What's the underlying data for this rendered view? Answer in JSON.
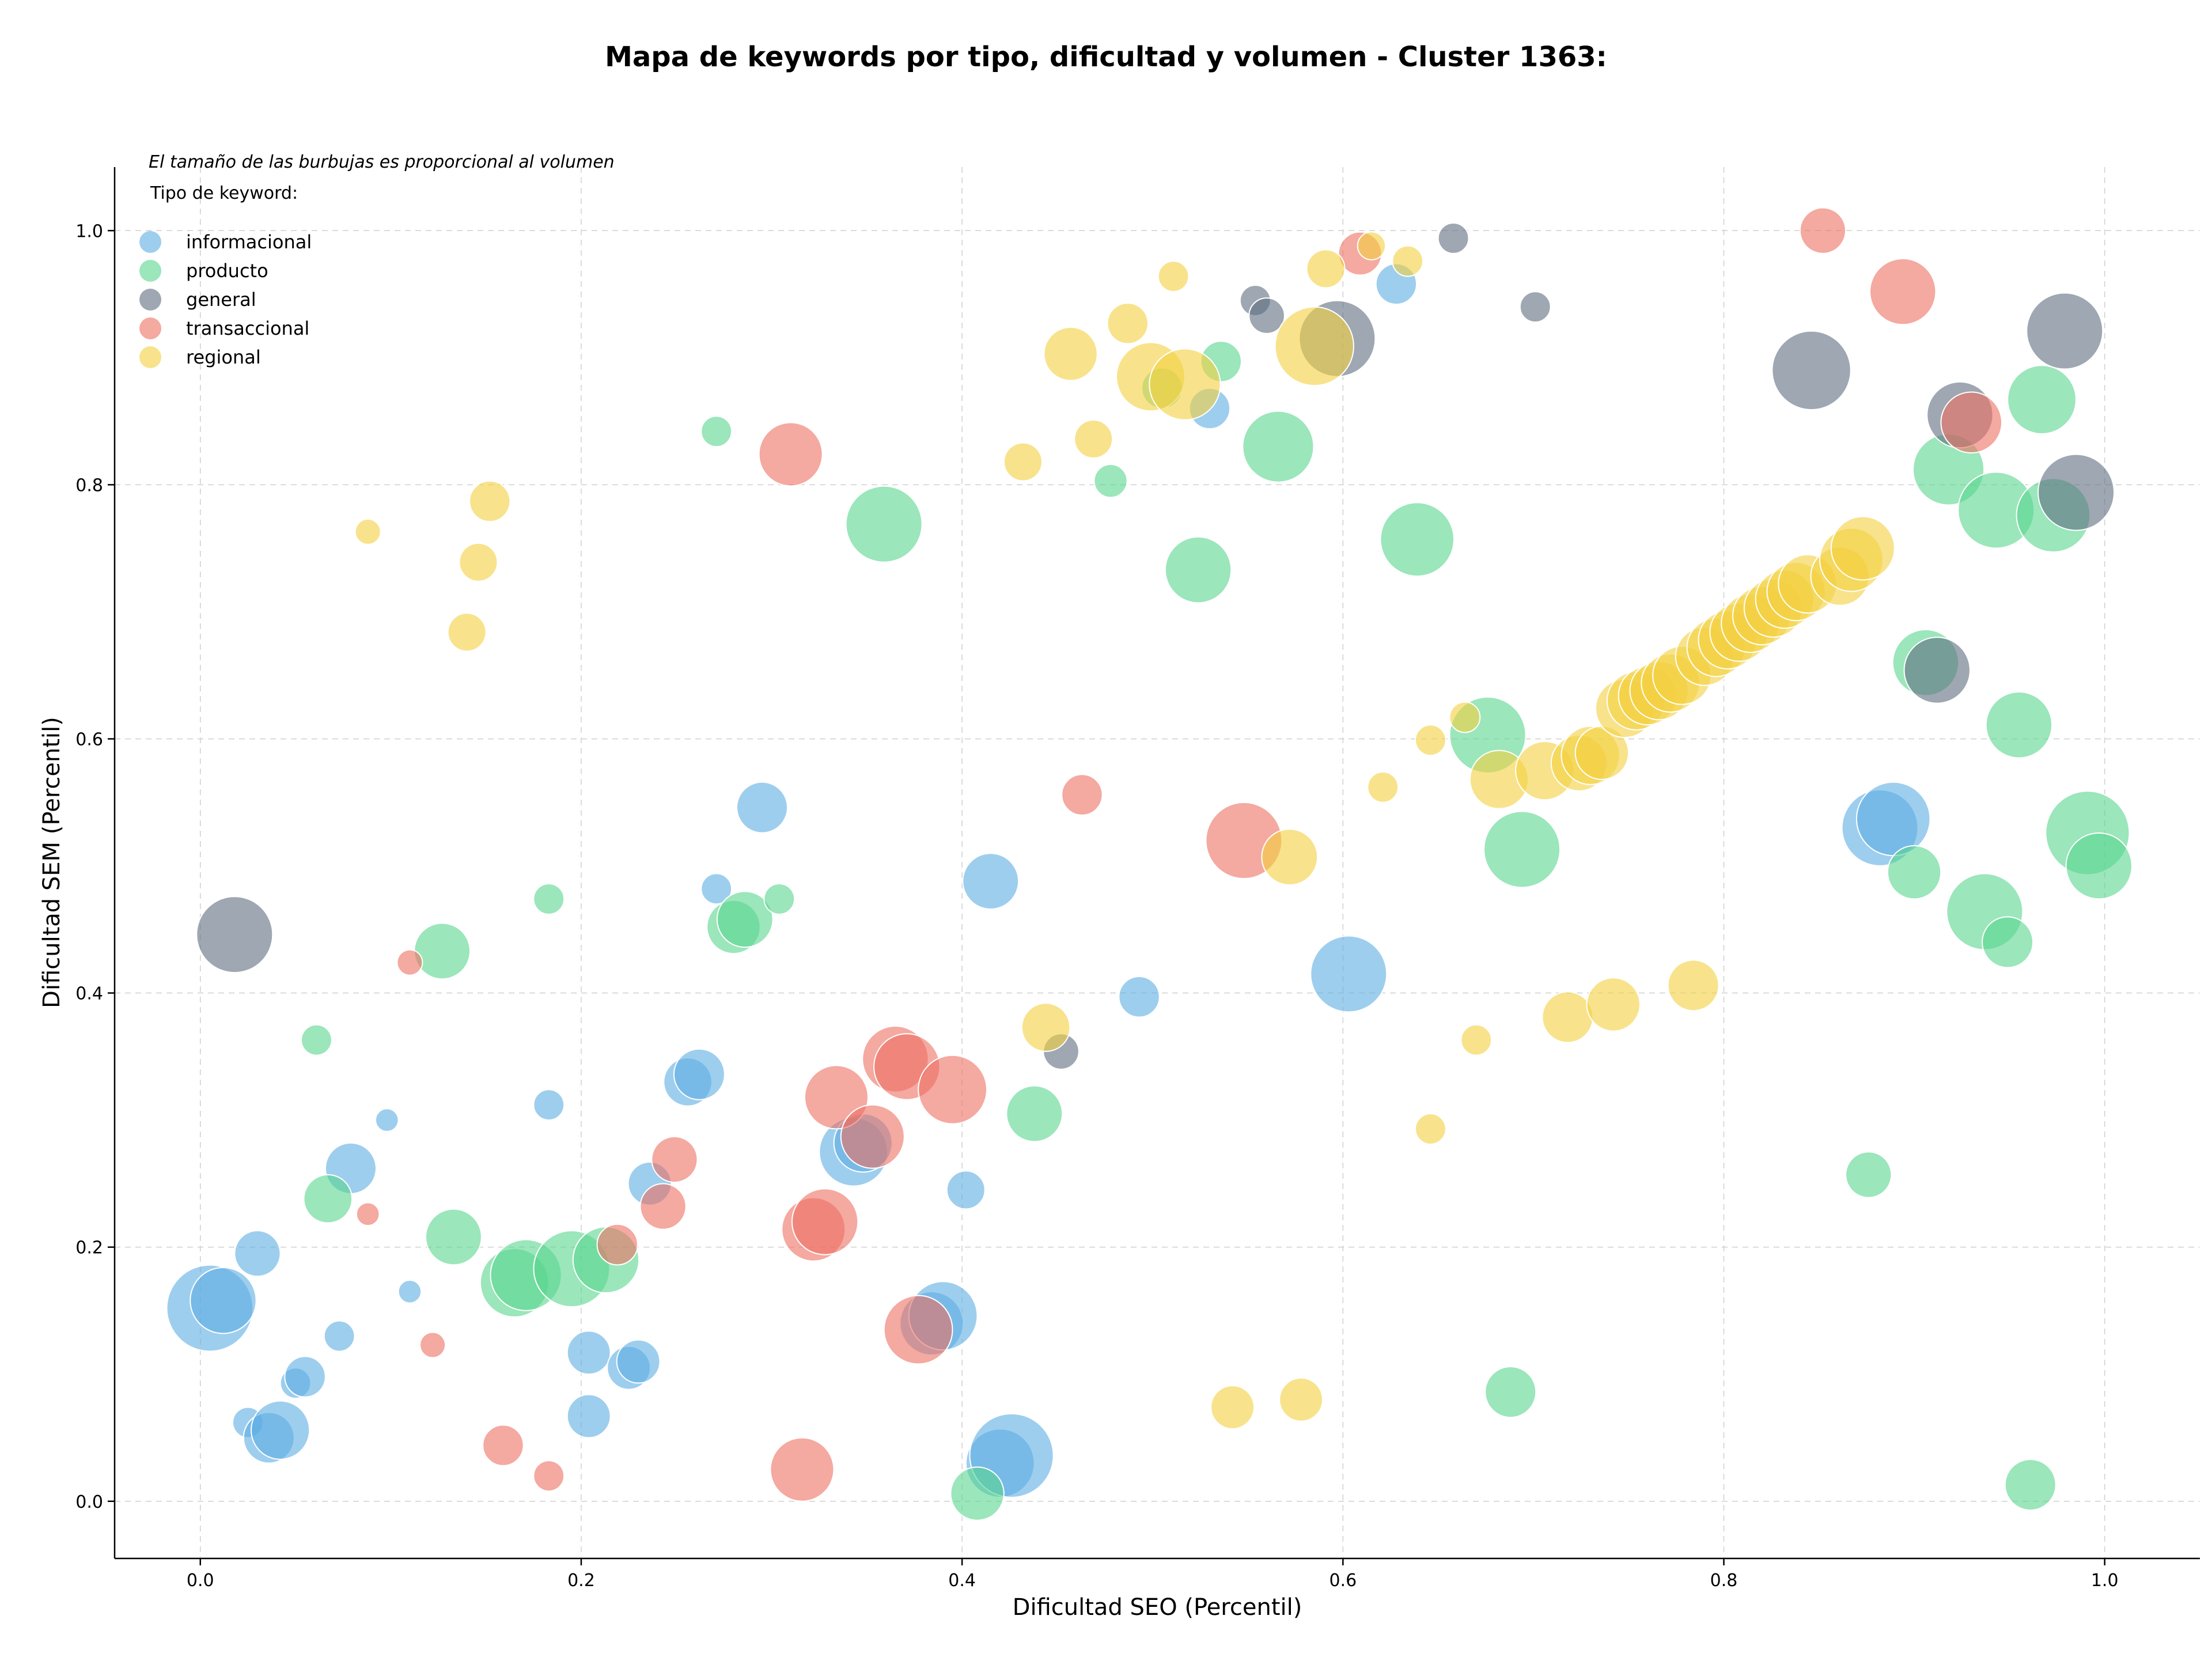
{
  "chart_data": {
    "type": "scatter",
    "title": "Mapa de keywords por tipo, dificultad y volumen - Cluster 1363:",
    "xlabel": "Dificultad SEO (Percentil)",
    "ylabel": "Dificultad SEM (Percentil)",
    "xlim": [
      -0.045,
      1.05
    ],
    "ylim": [
      -0.045,
      1.05
    ],
    "xticks": [
      "0.0",
      "0.2",
      "0.4",
      "0.6",
      "0.8",
      "1.0"
    ],
    "yticks": [
      "0.0",
      "0.2",
      "0.4",
      "0.6",
      "0.8",
      "1.0"
    ],
    "grid": true,
    "legend_title": "Tipo de keyword:",
    "legend_position": "top-left",
    "note": "El tamaño de las burbujas es proporcional al volumen",
    "series": [
      {
        "name": "informacional",
        "color": "#5dade2",
        "points": [
          [
            0.005,
            0.152,
            3.4
          ],
          [
            0.012,
            0.158,
            2.6
          ],
          [
            0.025,
            0.062,
            1.2
          ],
          [
            0.03,
            0.195,
            1.8
          ],
          [
            0.036,
            0.05,
            2.0
          ],
          [
            0.042,
            0.056,
            2.3
          ],
          [
            0.05,
            0.093,
            1.2
          ],
          [
            0.055,
            0.098,
            1.6
          ],
          [
            0.073,
            0.13,
            1.2
          ],
          [
            0.079,
            0.262,
            2.0
          ],
          [
            0.098,
            0.3,
            0.9
          ],
          [
            0.11,
            0.165,
            0.9
          ],
          [
            0.183,
            0.312,
            1.2
          ],
          [
            0.204,
            0.117,
            1.7
          ],
          [
            0.204,
            0.067,
            1.7
          ],
          [
            0.225,
            0.105,
            1.7
          ],
          [
            0.23,
            0.11,
            1.7
          ],
          [
            0.236,
            0.25,
            1.7
          ],
          [
            0.256,
            0.33,
            1.9
          ],
          [
            0.262,
            0.336,
            2.0
          ],
          [
            0.271,
            0.482,
            1.2
          ],
          [
            0.295,
            0.546,
            2.0
          ],
          [
            0.343,
            0.275,
            2.7
          ],
          [
            0.348,
            0.282,
            2.3
          ],
          [
            0.384,
            0.14,
            2.5
          ],
          [
            0.39,
            0.146,
            2.7
          ],
          [
            0.402,
            0.245,
            1.5
          ],
          [
            0.415,
            0.488,
            2.2
          ],
          [
            0.42,
            0.03,
            2.7
          ],
          [
            0.426,
            0.036,
            3.3
          ],
          [
            0.493,
            0.397,
            1.6
          ],
          [
            0.53,
            0.86,
            1.6
          ],
          [
            0.603,
            0.415,
            3.0
          ],
          [
            0.628,
            0.958,
            1.6
          ],
          [
            0.882,
            0.53,
            3.0
          ],
          [
            0.889,
            0.537,
            2.9
          ]
        ]
      },
      {
        "name": "producto",
        "color": "#58d68d",
        "points": [
          [
            0.061,
            0.363,
            1.2
          ],
          [
            0.067,
            0.238,
            1.9
          ],
          [
            0.127,
            0.433,
            2.2
          ],
          [
            0.133,
            0.208,
            2.2
          ],
          [
            0.165,
            0.172,
            2.7
          ],
          [
            0.171,
            0.178,
            2.8
          ],
          [
            0.183,
            0.474,
            1.2
          ],
          [
            0.195,
            0.183,
            3.0
          ],
          [
            0.213,
            0.19,
            2.6
          ],
          [
            0.271,
            0.842,
            1.2
          ],
          [
            0.28,
            0.452,
            2.1
          ],
          [
            0.286,
            0.458,
            2.2
          ],
          [
            0.304,
            0.474,
            1.2
          ],
          [
            0.359,
            0.769,
            3.0
          ],
          [
            0.408,
            0.006,
            2.1
          ],
          [
            0.438,
            0.305,
            2.2
          ],
          [
            0.478,
            0.803,
            1.3
          ],
          [
            0.505,
            0.876,
            1.6
          ],
          [
            0.524,
            0.733,
            2.6
          ],
          [
            0.536,
            0.897,
            1.6
          ],
          [
            0.566,
            0.83,
            2.8
          ],
          [
            0.639,
            0.757,
            2.9
          ],
          [
            0.676,
            0.603,
            3.0
          ],
          [
            0.688,
            0.086,
            2.0
          ],
          [
            0.694,
            0.513,
            3.0
          ],
          [
            0.876,
            0.257,
            1.8
          ],
          [
            0.9,
            0.495,
            2.1
          ],
          [
            0.906,
            0.66,
            2.6
          ],
          [
            0.918,
            0.812,
            2.8
          ],
          [
            0.943,
            0.78,
            3.0
          ],
          [
            0.937,
            0.464,
            3.0
          ],
          [
            0.949,
            0.44,
            2.0
          ],
          [
            0.955,
            0.611,
            2.6
          ],
          [
            0.961,
            0.013,
            2.0
          ],
          [
            0.967,
            0.867,
            2.7
          ],
          [
            0.973,
            0.776,
            2.9
          ],
          [
            0.991,
            0.526,
            3.3
          ],
          [
            0.997,
            0.5,
            2.6
          ]
        ]
      },
      {
        "name": "general",
        "color": "#5d6d7e",
        "points": [
          [
            0.018,
            0.446,
            3.0
          ],
          [
            0.452,
            0.354,
            1.4
          ],
          [
            0.554,
            0.945,
            1.2
          ],
          [
            0.56,
            0.933,
            1.4
          ],
          [
            0.597,
            0.915,
            3.0
          ],
          [
            0.658,
            0.994,
            1.2
          ],
          [
            0.701,
            0.94,
            1.2
          ],
          [
            0.846,
            0.89,
            3.1
          ],
          [
            0.912,
            0.654,
            2.6
          ],
          [
            0.924,
            0.855,
            2.6
          ],
          [
            0.979,
            0.921,
            3.0
          ],
          [
            0.985,
            0.794,
            3.0
          ]
        ]
      },
      {
        "name": "transaccional",
        "color": "#ec7063",
        "points": [
          [
            0.088,
            0.226,
            0.9
          ],
          [
            0.11,
            0.424,
            1.0
          ],
          [
            0.122,
            0.123,
            1.0
          ],
          [
            0.159,
            0.044,
            1.6
          ],
          [
            0.183,
            0.02,
            1.2
          ],
          [
            0.219,
            0.202,
            1.6
          ],
          [
            0.243,
            0.232,
            1.8
          ],
          [
            0.249,
            0.269,
            1.8
          ],
          [
            0.31,
            0.824,
            2.5
          ],
          [
            0.316,
            0.025,
            2.5
          ],
          [
            0.322,
            0.214,
            2.5
          ],
          [
            0.328,
            0.22,
            2.6
          ],
          [
            0.334,
            0.318,
            2.5
          ],
          [
            0.353,
            0.287,
            2.5
          ],
          [
            0.365,
            0.348,
            2.6
          ],
          [
            0.371,
            0.342,
            2.6
          ],
          [
            0.377,
            0.135,
            2.7
          ],
          [
            0.395,
            0.324,
            2.7
          ],
          [
            0.463,
            0.556,
            1.6
          ],
          [
            0.548,
            0.52,
            3.0
          ],
          [
            0.609,
            0.982,
            1.7
          ],
          [
            0.852,
            1.0,
            1.8
          ],
          [
            0.894,
            0.952,
            2.6
          ],
          [
            0.93,
            0.849,
            2.4
          ]
        ]
      },
      {
        "name": "regional",
        "color": "#f4d03f",
        "points": [
          [
            0.088,
            0.763,
            1.0
          ],
          [
            0.14,
            0.684,
            1.5
          ],
          [
            0.146,
            0.739,
            1.5
          ],
          [
            0.152,
            0.787,
            1.6
          ],
          [
            0.432,
            0.818,
            1.5
          ],
          [
            0.444,
            0.373,
            1.9
          ],
          [
            0.457,
            0.903,
            2.1
          ],
          [
            0.469,
            0.836,
            1.5
          ],
          [
            0.487,
            0.927,
            1.6
          ],
          [
            0.499,
            0.885,
            2.7
          ],
          [
            0.511,
            0.964,
            1.2
          ],
          [
            0.517,
            0.879,
            2.8
          ],
          [
            0.542,
            0.074,
            1.7
          ],
          [
            0.572,
            0.507,
            2.2
          ],
          [
            0.578,
            0.08,
            1.7
          ],
          [
            0.585,
            0.909,
            3.1
          ],
          [
            0.591,
            0.97,
            1.5
          ],
          [
            0.615,
            0.988,
            1.1
          ],
          [
            0.621,
            0.562,
            1.2
          ],
          [
            0.634,
            0.976,
            1.2
          ],
          [
            0.646,
            0.599,
            1.2
          ],
          [
            0.646,
            0.293,
            1.2
          ],
          [
            0.664,
            0.617,
            1.2
          ],
          [
            0.67,
            0.363,
            1.2
          ],
          [
            0.682,
            0.568,
            2.3
          ],
          [
            0.706,
            0.575,
            2.3
          ],
          [
            0.718,
            0.381,
            2.0
          ],
          [
            0.724,
            0.581,
            2.2
          ],
          [
            0.73,
            0.587,
            2.3
          ],
          [
            0.736,
            0.589,
            2.1
          ],
          [
            0.742,
            0.391,
            2.1
          ],
          [
            0.748,
            0.624,
            2.3
          ],
          [
            0.754,
            0.63,
            2.3
          ],
          [
            0.76,
            0.634,
            2.3
          ],
          [
            0.766,
            0.638,
            2.3
          ],
          [
            0.772,
            0.644,
            2.3
          ],
          [
            0.778,
            0.65,
            2.3
          ],
          [
            0.784,
            0.406,
            2.0
          ],
          [
            0.79,
            0.665,
            2.3
          ],
          [
            0.796,
            0.672,
            2.3
          ],
          [
            0.802,
            0.678,
            2.3
          ],
          [
            0.808,
            0.684,
            2.3
          ],
          [
            0.814,
            0.691,
            2.3
          ],
          [
            0.82,
            0.697,
            2.3
          ],
          [
            0.826,
            0.703,
            2.3
          ],
          [
            0.832,
            0.71,
            2.3
          ],
          [
            0.838,
            0.716,
            2.3
          ],
          [
            0.844,
            0.722,
            2.3
          ],
          [
            0.861,
            0.728,
            2.3
          ],
          [
            0.867,
            0.741,
            2.5
          ],
          [
            0.873,
            0.75,
            2.5
          ]
        ]
      }
    ]
  }
}
